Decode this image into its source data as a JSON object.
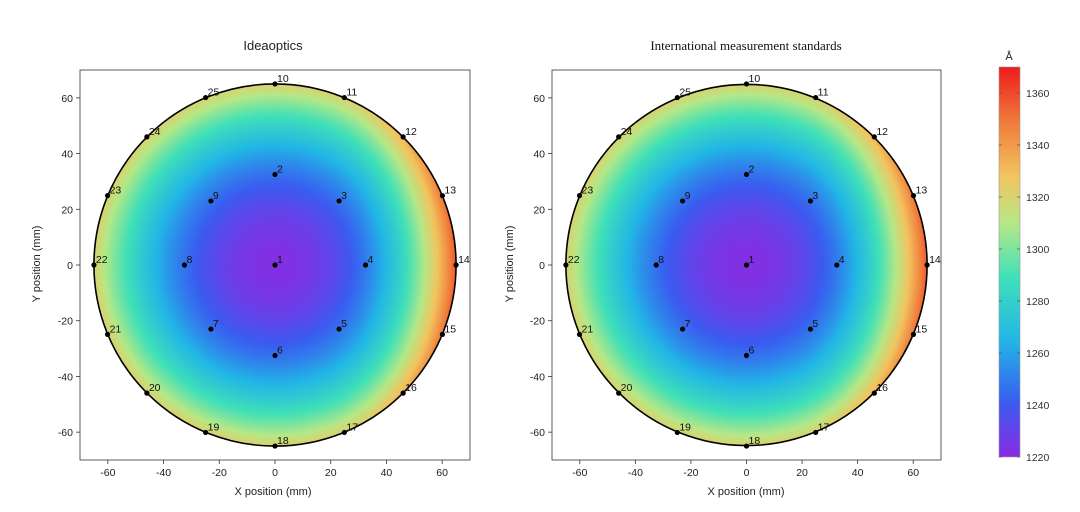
{
  "chart_data": [
    {
      "type": "heatmap",
      "title": "Ideaoptics",
      "xlabel": "X position (mm)",
      "ylabel": "Y position (mm)",
      "xlim": [
        -70,
        70
      ],
      "ylim": [
        -70,
        70
      ],
      "xticks": [
        -60,
        -40,
        -20,
        0,
        20,
        40,
        60
      ],
      "yticks": [
        -60,
        -40,
        -20,
        0,
        20,
        40,
        60
      ],
      "wafer_radius_mm": 65,
      "grid": false,
      "points": [
        {
          "id": "1",
          "x": 0,
          "y": 0
        },
        {
          "id": "2",
          "x": 0,
          "y": 32.5
        },
        {
          "id": "3",
          "x": 23,
          "y": 23
        },
        {
          "id": "4",
          "x": 32.5,
          "y": 0
        },
        {
          "id": "5",
          "x": 23,
          "y": -23
        },
        {
          "id": "6",
          "x": 0,
          "y": -32.5
        },
        {
          "id": "7",
          "x": -23,
          "y": -23
        },
        {
          "id": "8",
          "x": -32.5,
          "y": 0
        },
        {
          "id": "9",
          "x": -23,
          "y": 23
        },
        {
          "id": "10",
          "x": 0,
          "y": 65
        },
        {
          "id": "11",
          "x": 24.9,
          "y": 60.1
        },
        {
          "id": "12",
          "x": 46,
          "y": 46
        },
        {
          "id": "13",
          "x": 60.1,
          "y": 24.9
        },
        {
          "id": "14",
          "x": 65,
          "y": 0
        },
        {
          "id": "15",
          "x": 60.1,
          "y": -24.9
        },
        {
          "id": "16",
          "x": 46,
          "y": -46
        },
        {
          "id": "17",
          "x": 24.9,
          "y": -60.1
        },
        {
          "id": "18",
          "x": 0,
          "y": -65
        },
        {
          "id": "19",
          "x": -24.9,
          "y": -60.1
        },
        {
          "id": "20",
          "x": -46,
          "y": -46
        },
        {
          "id": "21",
          "x": -60.1,
          "y": -24.9
        },
        {
          "id": "22",
          "x": -65,
          "y": 0
        },
        {
          "id": "23",
          "x": -60.1,
          "y": 24.9
        },
        {
          "id": "24",
          "x": -46,
          "y": 46
        },
        {
          "id": "25",
          "x": -24.9,
          "y": 60.1
        }
      ],
      "thickness_model": {
        "center_value": 1222,
        "radial_coef": 0.0235,
        "tilt_coef": 0.35,
        "tilt_center_x": 20
      },
      "colormap": "rainbow"
    },
    {
      "type": "heatmap",
      "title": "International  measurement standards",
      "xlabel": "X position (mm)",
      "ylabel": "Y position (mm)",
      "xlim": [
        -70,
        70
      ],
      "ylim": [
        -70,
        70
      ],
      "xticks": [
        -60,
        -40,
        -20,
        0,
        20,
        40,
        60
      ],
      "yticks": [
        -60,
        -40,
        -20,
        0,
        20,
        40,
        60
      ],
      "wafer_radius_mm": 65,
      "grid": false,
      "points": "same as Ideaoptics",
      "thickness_model": {
        "center_value": 1222,
        "radial_coef": 0.0235,
        "tilt_coef": 0.35,
        "tilt_center_x": 20
      },
      "colormap": "rainbow"
    }
  ],
  "colorbar": {
    "unit": "Å",
    "min": 1220,
    "max": 1370,
    "ticks": [
      1220,
      1240,
      1260,
      1280,
      1300,
      1320,
      1340,
      1360
    ]
  }
}
